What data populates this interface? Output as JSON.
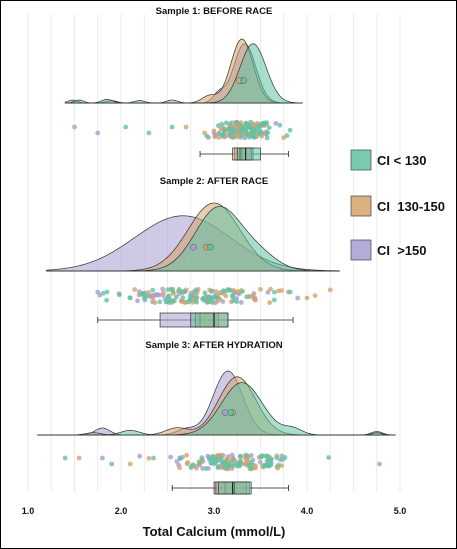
{
  "chart_data": {
    "type": "raincloud",
    "xlabel": "Total Calcium (mmol/L)",
    "xlim": [
      1.0,
      5.0
    ],
    "xticks": [
      1.0,
      2.0,
      3.0,
      4.0,
      5.0
    ],
    "tick_labels": [
      "1.0",
      "2.0",
      "3.0",
      "4.0",
      "5.0"
    ],
    "grid": "vertical",
    "legend_position": "right",
    "series": [
      {
        "key": "lt130",
        "name": "CI < 130",
        "color": "#5fc3a2"
      },
      {
        "key": "130to150",
        "name": "CI  130-150",
        "color": "#d6a36c"
      },
      {
        "key": "gt150",
        "name": "CI  >150",
        "color": "#a89cd1"
      }
    ],
    "panels": [
      {
        "title": "Sample 1: BEFORE RACE",
        "x_range": [
          1.4,
          3.95
        ],
        "densities": {
          "lt130": {
            "components": [
              [
                3.42,
                0.14,
                1.0
              ],
              [
                1.85,
                0.06,
                0.06
              ],
              [
                2.2,
                0.06,
                0.04
              ],
              [
                1.55,
                0.05,
                0.05
              ]
            ]
          },
          "130to150": {
            "components": [
              [
                3.3,
                0.12,
                1.08
              ],
              [
                2.95,
                0.08,
                0.12
              ],
              [
                1.9,
                0.06,
                0.04
              ]
            ]
          },
          "gt150": {
            "components": [
              [
                3.33,
                0.12,
                1.0
              ],
              [
                1.48,
                0.05,
                0.05
              ],
              [
                2.55,
                0.06,
                0.05
              ],
              [
                3.05,
                0.06,
                0.15
              ]
            ]
          }
        },
        "means": {
          "lt130": 3.32,
          "130to150": 3.27,
          "gt150": 3.3
        },
        "jitter": {
          "lt130": [
            3.36,
            0.18
          ],
          "130to150": [
            3.3,
            0.17
          ],
          "gt150": [
            3.3,
            0.18
          ]
        },
        "outliers": {
          "lt130": [
            2.05,
            2.3,
            2.55
          ],
          "130to150": [
            2.7,
            2.9
          ],
          "gt150": [
            1.5,
            1.75
          ]
        },
        "boxplot": {
          "whisker_low": 2.85,
          "whisker_high": 3.8,
          "lt130": [
            3.25,
            3.34,
            3.5
          ],
          "130to150": [
            3.2,
            3.28,
            3.4
          ],
          "gt150": [
            3.22,
            3.3,
            3.42
          ]
        }
      },
      {
        "title": "Sample 2: AFTER RACE",
        "x_range": [
          1.2,
          4.35
        ],
        "densities": {
          "lt130": {
            "components": [
              [
                3.05,
                0.25,
                0.98
              ],
              [
                3.5,
                0.2,
                0.2
              ]
            ]
          },
          "130to150": {
            "components": [
              [
                3.0,
                0.28,
                1.05
              ]
            ]
          },
          "gt150": {
            "components": [
              [
                2.75,
                0.48,
                0.72
              ],
              [
                2.3,
                0.45,
                0.2
              ]
            ]
          }
        },
        "means": {
          "lt130": 2.96,
          "130to150": 2.92,
          "gt150": 2.78
        },
        "jitter": {
          "lt130": [
            2.9,
            0.45
          ],
          "130to150": [
            2.95,
            0.38
          ],
          "gt150": [
            2.75,
            0.45
          ]
        },
        "outliers": {
          "lt130": [
            1.85,
            2.1
          ],
          "130to150": [
            3.8,
            4.0
          ],
          "gt150": [
            1.75,
            3.9
          ]
        },
        "boxplot": {
          "whisker_low": 1.75,
          "whisker_high": 3.85,
          "lt130": [
            2.75,
            3.0,
            3.15
          ],
          "130to150": [
            2.8,
            3.0,
            3.15
          ],
          "gt150": [
            2.42,
            2.85,
            3.05
          ]
        }
      },
      {
        "title": "Sample 3: AFTER HYDRATION",
        "x_range": [
          1.1,
          4.95
        ],
        "densities": {
          "lt130": {
            "components": [
              [
                3.3,
                0.22,
                0.9
              ],
              [
                2.1,
                0.1,
                0.08
              ],
              [
                3.85,
                0.1,
                0.1
              ],
              [
                4.75,
                0.05,
                0.04
              ]
            ]
          },
          "130to150": {
            "components": [
              [
                3.25,
                0.2,
                1.0
              ],
              [
                2.6,
                0.12,
                0.12
              ],
              [
                1.7,
                0.08,
                0.04
              ]
            ]
          },
          "gt150": {
            "components": [
              [
                3.15,
                0.16,
                1.1
              ],
              [
                1.8,
                0.08,
                0.12
              ],
              [
                4.75,
                0.06,
                0.06
              ],
              [
                2.7,
                0.1,
                0.1
              ]
            ]
          }
        },
        "means": {
          "lt130": 3.18,
          "130to150": 3.2,
          "gt150": 3.12
        },
        "jitter": {
          "lt130": [
            3.25,
            0.3
          ],
          "130to150": [
            3.2,
            0.27
          ],
          "gt150": [
            3.15,
            0.28
          ]
        },
        "outliers": {
          "lt130": [
            1.4,
            1.9,
            2.35
          ],
          "130to150": [
            1.55,
            2.1
          ],
          "gt150": [
            1.8,
            4.78
          ]
        },
        "boxplot": {
          "whisker_low": 2.55,
          "whisker_high": 3.8,
          "lt130": [
            3.05,
            3.2,
            3.4
          ],
          "130to150": [
            3.02,
            3.22,
            3.38
          ],
          "gt150": [
            3.0,
            3.12,
            3.35
          ]
        }
      }
    ]
  }
}
